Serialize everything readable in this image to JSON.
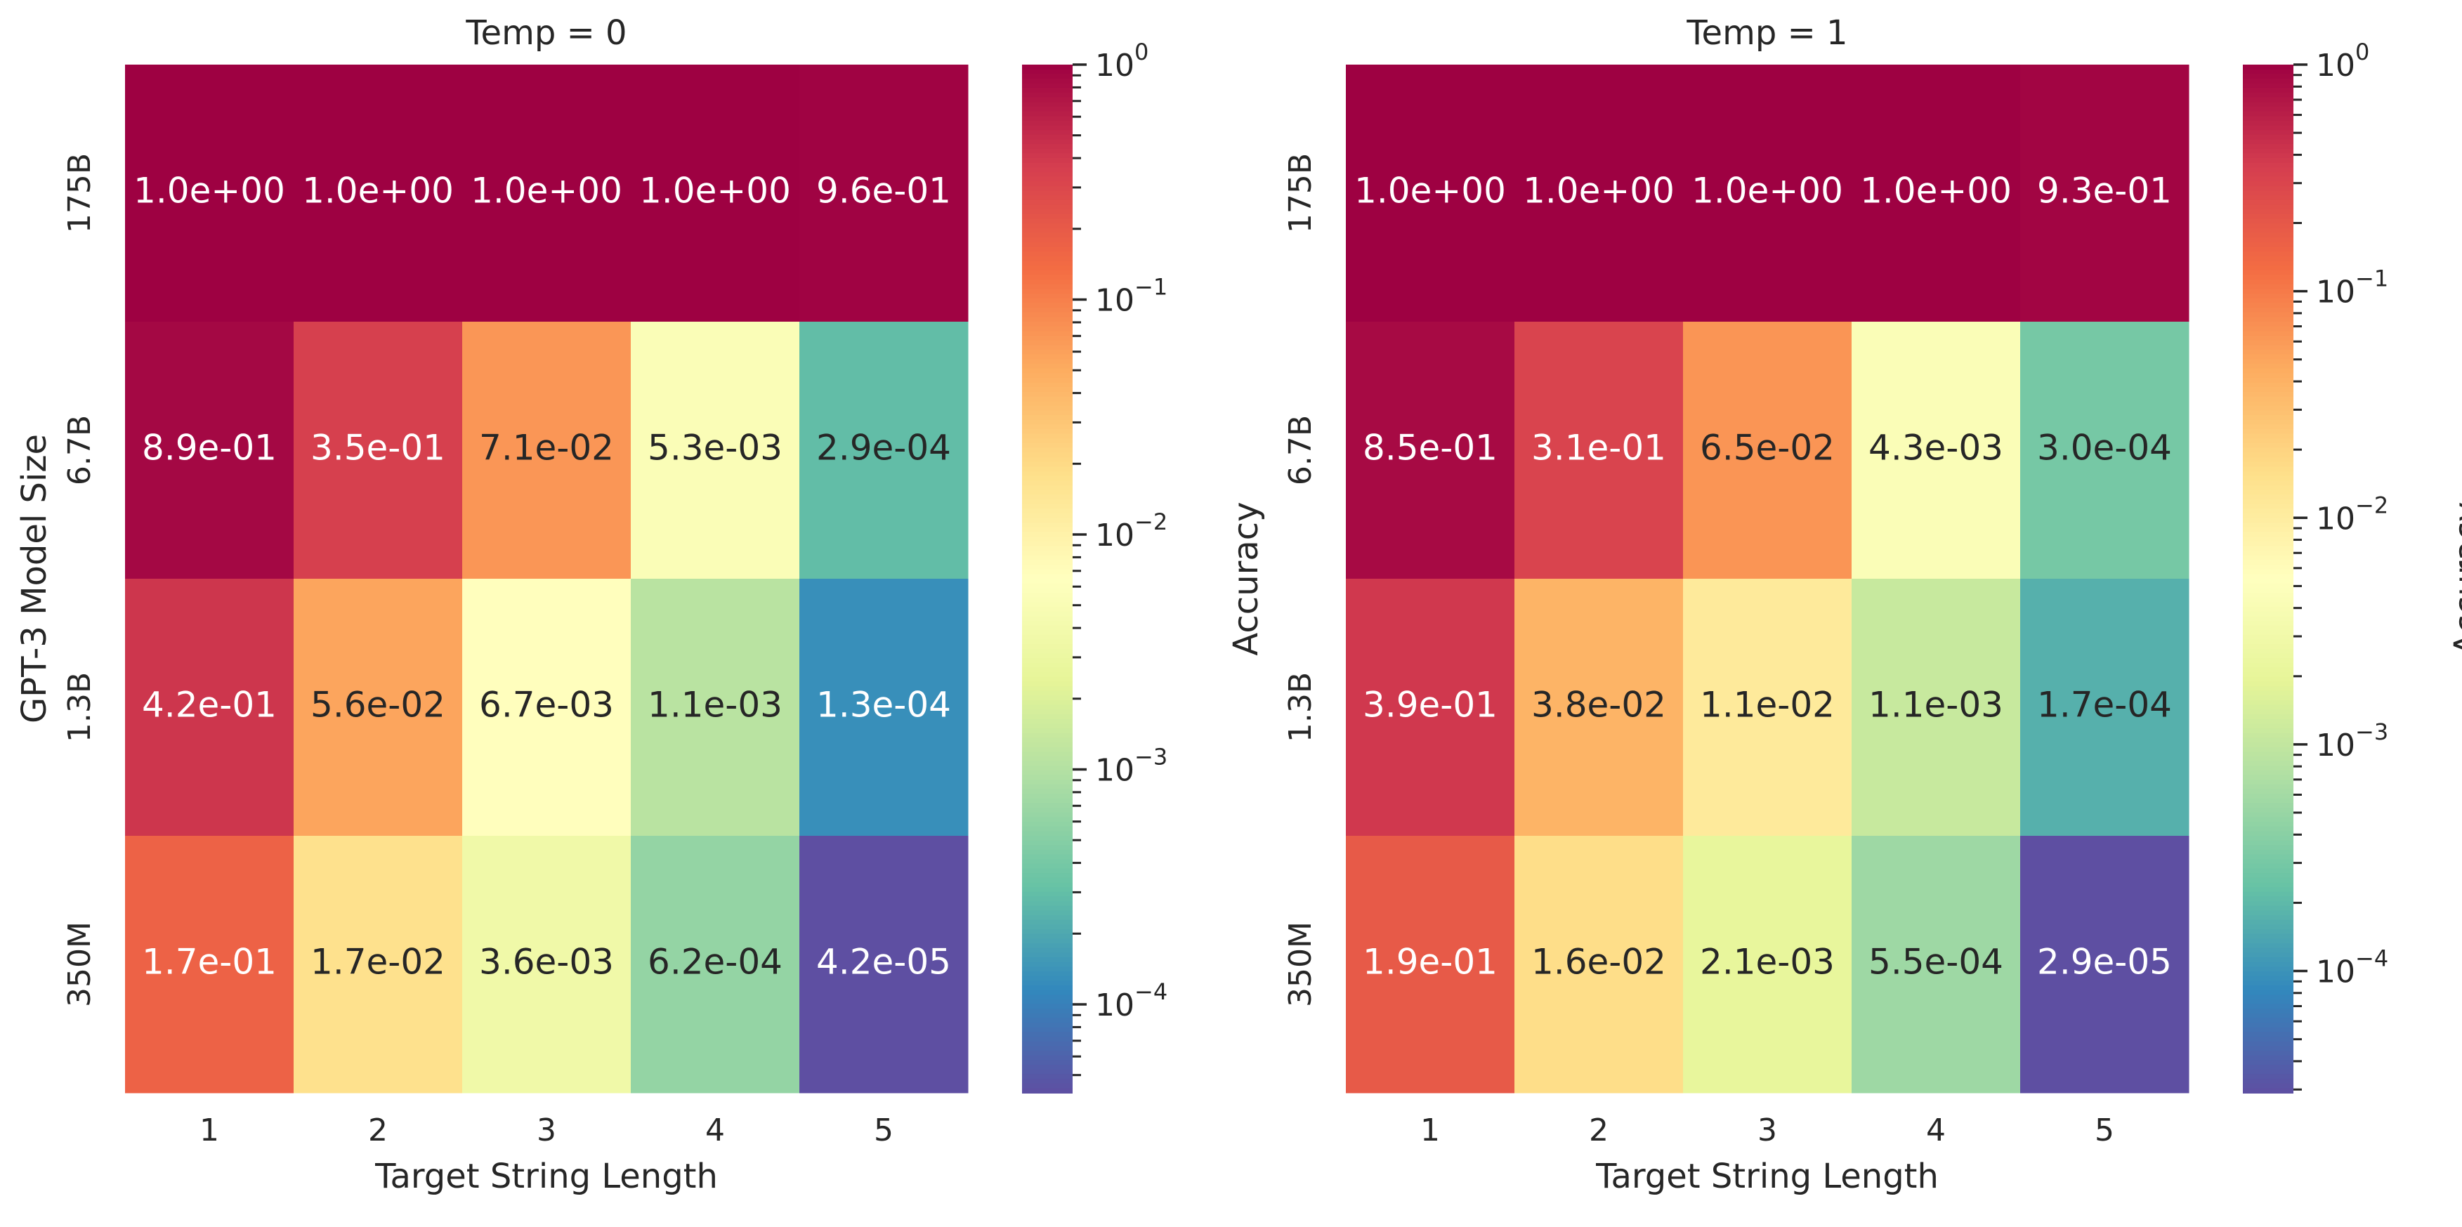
{
  "chart_data": [
    {
      "type": "heatmap",
      "title": "Temp = 0",
      "xlabel": "Target String Length",
      "ylabel": "GPT-3 Model Size",
      "x_categories": [
        "1",
        "2",
        "3",
        "4",
        "5"
      ],
      "y_categories": [
        "175B",
        "6.7B",
        "1.3B",
        "350M"
      ],
      "values": [
        [
          1.0,
          1.0,
          1.0,
          1.0,
          0.96
        ],
        [
          0.89,
          0.35,
          0.071,
          0.0053,
          0.00029
        ],
        [
          0.42,
          0.056,
          0.0067,
          0.0011,
          0.00013
        ],
        [
          0.17,
          0.017,
          0.0036,
          0.00062,
          4.2e-05
        ]
      ],
      "cell_labels": [
        [
          "1.0e+00",
          "1.0e+00",
          "1.0e+00",
          "1.0e+00",
          "9.6e-01"
        ],
        [
          "8.9e-01",
          "3.5e-01",
          "7.1e-02",
          "5.3e-03",
          "2.9e-04"
        ],
        [
          "4.2e-01",
          "5.6e-02",
          "6.7e-03",
          "1.1e-03",
          "1.3e-04"
        ],
        [
          "1.7e-01",
          "1.7e-02",
          "3.6e-03",
          "6.2e-04",
          "4.2e-05"
        ]
      ],
      "colorbar": {
        "label": "Accuracy",
        "scale": "log",
        "range": [
          4.2e-05,
          1.0
        ],
        "ticks": [
          {
            "value": 1.0,
            "label": "10^0"
          },
          {
            "value": 0.1,
            "label": "10^-1"
          },
          {
            "value": 0.01,
            "label": "10^-2"
          },
          {
            "value": 0.001,
            "label": "10^-3"
          },
          {
            "value": 0.0001,
            "label": "10^-4"
          }
        ],
        "colormap": "Spectral"
      },
      "grid": false
    },
    {
      "type": "heatmap",
      "title": "Temp = 1",
      "xlabel": "Target String Length",
      "ylabel": "",
      "x_categories": [
        "1",
        "2",
        "3",
        "4",
        "5"
      ],
      "y_categories": [
        "175B",
        "6.7B",
        "1.3B",
        "350M"
      ],
      "values": [
        [
          1.0,
          1.0,
          1.0,
          1.0,
          0.93
        ],
        [
          0.85,
          0.31,
          0.065,
          0.0043,
          0.0003
        ],
        [
          0.39,
          0.038,
          0.011,
          0.0011,
          0.00017
        ],
        [
          0.19,
          0.016,
          0.0021,
          0.00055,
          2.9e-05
        ]
      ],
      "cell_labels": [
        [
          "1.0e+00",
          "1.0e+00",
          "1.0e+00",
          "1.0e+00",
          "9.3e-01"
        ],
        [
          "8.5e-01",
          "3.1e-01",
          "6.5e-02",
          "4.3e-03",
          "3.0e-04"
        ],
        [
          "3.9e-01",
          "3.8e-02",
          "1.1e-02",
          "1.1e-03",
          "1.7e-04"
        ],
        [
          "1.9e-01",
          "1.6e-02",
          "2.1e-03",
          "5.5e-04",
          "2.9e-05"
        ]
      ],
      "colorbar": {
        "label": "Accuracy",
        "scale": "log",
        "range": [
          2.9e-05,
          1.0
        ],
        "ticks": [
          {
            "value": 1.0,
            "label": "10^0"
          },
          {
            "value": 0.1,
            "label": "10^-1"
          },
          {
            "value": 0.01,
            "label": "10^-2"
          },
          {
            "value": 0.001,
            "label": "10^-3"
          },
          {
            "value": 0.0001,
            "label": "10^-4"
          }
        ],
        "colormap": "Spectral"
      },
      "grid": false
    }
  ]
}
